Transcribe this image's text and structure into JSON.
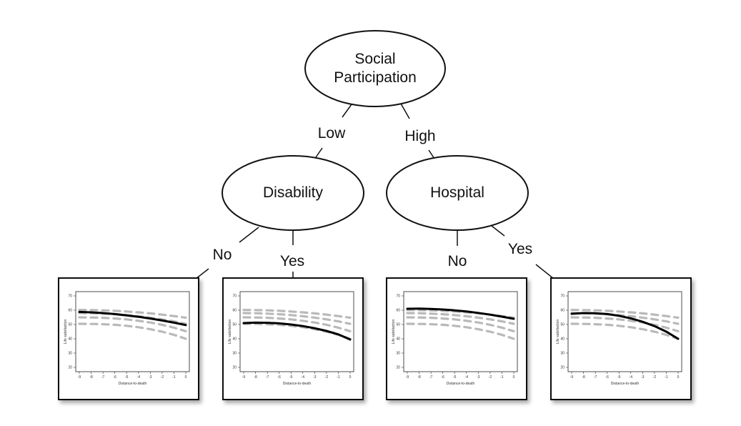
{
  "tree": {
    "root": {
      "lines": [
        "Social",
        "Participation"
      ]
    },
    "nodes": {
      "disability": "Disability",
      "hospital": "Hospital"
    },
    "edges": {
      "low": "Low",
      "high": "High",
      "disability_no": "No",
      "disability_yes": "Yes",
      "hospital_no": "No",
      "hospital_yes": "Yes"
    }
  },
  "panel_axis": {
    "xlabel": "Distance-to-death",
    "ylabel": "Life satisfaction",
    "x_ticks": [
      "-9",
      "-8",
      "-7",
      "-6",
      "-5",
      "-4",
      "-3",
      "-2",
      "-1",
      "0"
    ],
    "y_ticks": [
      "20",
      "30",
      "40",
      "50",
      "60",
      "70"
    ]
  },
  "chart_data": [
    {
      "type": "line",
      "panel": "disability-no",
      "xlim": [
        -9,
        0
      ],
      "ylim": [
        20,
        70
      ],
      "series": [
        {
          "style": "solid",
          "x": [
            -9,
            -8,
            -7,
            -6,
            -5,
            -4,
            -3,
            -2,
            -1,
            0
          ],
          "y": [
            58.8,
            58.5,
            58.0,
            57.3,
            56.4,
            55.4,
            54.2,
            52.8,
            51.3,
            49.6
          ]
        },
        {
          "style": "dashed",
          "x": [
            -9,
            -8,
            -7,
            -6,
            -5,
            -4,
            -3,
            -2,
            -1,
            0
          ],
          "y": [
            60.2,
            60.1,
            59.9,
            59.6,
            59.1,
            58.5,
            57.8,
            56.9,
            55.9,
            54.8
          ]
        },
        {
          "style": "dashed",
          "x": [
            -9,
            -8,
            -7,
            -6,
            -5,
            -4,
            -3,
            -2,
            -1,
            0
          ],
          "y": [
            58.0,
            57.9,
            57.6,
            57.2,
            56.6,
            55.8,
            54.8,
            53.6,
            52.2,
            50.5
          ]
        },
        {
          "style": "dashed",
          "x": [
            -9,
            -8,
            -7,
            -6,
            -5,
            -4,
            -3,
            -2,
            -1,
            0
          ],
          "y": [
            55.0,
            54.9,
            54.7,
            54.2,
            53.6,
            52.6,
            51.4,
            49.8,
            47.8,
            45.3
          ]
        },
        {
          "style": "dashed",
          "x": [
            -9,
            -8,
            -7,
            -6,
            -5,
            -4,
            -3,
            -2,
            -1,
            0
          ],
          "y": [
            50.5,
            50.4,
            50.2,
            49.8,
            49.1,
            48.1,
            46.7,
            45.0,
            42.8,
            40.0
          ]
        }
      ]
    },
    {
      "type": "line",
      "panel": "disability-yes",
      "xlim": [
        -9,
        0
      ],
      "ylim": [
        20,
        70
      ],
      "series": [
        {
          "style": "solid",
          "x": [
            -9,
            -8,
            -7,
            -6,
            -5,
            -4,
            -3,
            -2,
            -1,
            0
          ],
          "y": [
            51.0,
            51.3,
            51.2,
            50.8,
            50.0,
            48.9,
            47.4,
            45.5,
            43.1,
            39.5
          ]
        },
        {
          "style": "dashed",
          "x": [
            -9,
            -8,
            -7,
            -6,
            -5,
            -4,
            -3,
            -2,
            -1,
            0
          ],
          "y": [
            60.2,
            60.1,
            59.9,
            59.6,
            59.1,
            58.5,
            57.8,
            56.9,
            55.9,
            54.8
          ]
        },
        {
          "style": "dashed",
          "x": [
            -9,
            -8,
            -7,
            -6,
            -5,
            -4,
            -3,
            -2,
            -1,
            0
          ],
          "y": [
            58.0,
            57.9,
            57.6,
            57.2,
            56.6,
            55.8,
            54.8,
            53.6,
            52.2,
            50.5
          ]
        },
        {
          "style": "dashed",
          "x": [
            -9,
            -8,
            -7,
            -6,
            -5,
            -4,
            -3,
            -2,
            -1,
            0
          ],
          "y": [
            55.0,
            54.9,
            54.7,
            54.2,
            53.6,
            52.6,
            51.4,
            49.8,
            47.8,
            45.3
          ]
        },
        {
          "style": "dashed",
          "x": [
            -9,
            -8,
            -7,
            -6,
            -5,
            -4,
            -3,
            -2,
            -1,
            0
          ],
          "y": [
            50.5,
            50.4,
            50.2,
            49.8,
            49.1,
            48.1,
            46.7,
            45.0,
            42.8,
            40.0
          ]
        }
      ]
    },
    {
      "type": "line",
      "panel": "hospital-no",
      "xlim": [
        -9,
        0
      ],
      "ylim": [
        20,
        70
      ],
      "series": [
        {
          "style": "solid",
          "x": [
            -9,
            -8,
            -7,
            -6,
            -5,
            -4,
            -3,
            -2,
            -1,
            0
          ],
          "y": [
            61.0,
            61.1,
            60.9,
            60.5,
            59.9,
            59.1,
            58.1,
            56.9,
            55.5,
            54.0
          ]
        },
        {
          "style": "dashed",
          "x": [
            -9,
            -8,
            -7,
            -6,
            -5,
            -4,
            -3,
            -2,
            -1,
            0
          ],
          "y": [
            60.2,
            60.1,
            59.9,
            59.6,
            59.1,
            58.5,
            57.8,
            56.9,
            55.9,
            54.8
          ]
        },
        {
          "style": "dashed",
          "x": [
            -9,
            -8,
            -7,
            -6,
            -5,
            -4,
            -3,
            -2,
            -1,
            0
          ],
          "y": [
            58.0,
            57.9,
            57.6,
            57.2,
            56.6,
            55.8,
            54.8,
            53.6,
            52.2,
            50.5
          ]
        },
        {
          "style": "dashed",
          "x": [
            -9,
            -8,
            -7,
            -6,
            -5,
            -4,
            -3,
            -2,
            -1,
            0
          ],
          "y": [
            55.0,
            54.9,
            54.7,
            54.2,
            53.6,
            52.6,
            51.4,
            49.8,
            47.8,
            45.3
          ]
        },
        {
          "style": "dashed",
          "x": [
            -9,
            -8,
            -7,
            -6,
            -5,
            -4,
            -3,
            -2,
            -1,
            0
          ],
          "y": [
            50.5,
            50.4,
            50.2,
            49.8,
            49.1,
            48.1,
            46.7,
            45.0,
            42.8,
            40.0
          ]
        }
      ]
    },
    {
      "type": "line",
      "panel": "hospital-yes",
      "xlim": [
        -9,
        0
      ],
      "ylim": [
        20,
        70
      ],
      "series": [
        {
          "style": "solid",
          "x": [
            -9,
            -8,
            -7,
            -6,
            -5,
            -4,
            -3,
            -2,
            -1,
            0
          ],
          "y": [
            57.5,
            58.0,
            57.9,
            57.3,
            56.1,
            54.3,
            51.9,
            48.9,
            45.0,
            40.0
          ]
        },
        {
          "style": "dashed",
          "x": [
            -9,
            -8,
            -7,
            -6,
            -5,
            -4,
            -3,
            -2,
            -1,
            0
          ],
          "y": [
            60.2,
            60.1,
            59.9,
            59.6,
            59.1,
            58.5,
            57.8,
            56.9,
            55.9,
            54.8
          ]
        },
        {
          "style": "dashed",
          "x": [
            -9,
            -8,
            -7,
            -6,
            -5,
            -4,
            -3,
            -2,
            -1,
            0
          ],
          "y": [
            58.0,
            57.9,
            57.6,
            57.2,
            56.6,
            55.8,
            54.8,
            53.6,
            52.2,
            50.5
          ]
        },
        {
          "style": "dashed",
          "x": [
            -9,
            -8,
            -7,
            -6,
            -5,
            -4,
            -3,
            -2,
            -1,
            0
          ],
          "y": [
            55.0,
            54.9,
            54.7,
            54.2,
            53.6,
            52.6,
            51.4,
            49.8,
            47.8,
            45.3
          ]
        },
        {
          "style": "dashed",
          "x": [
            -9,
            -8,
            -7,
            -6,
            -5,
            -4,
            -3,
            -2,
            -1,
            0
          ],
          "y": [
            50.5,
            50.4,
            50.2,
            49.8,
            49.1,
            48.1,
            46.7,
            45.0,
            42.8,
            40.0
          ]
        }
      ]
    }
  ]
}
